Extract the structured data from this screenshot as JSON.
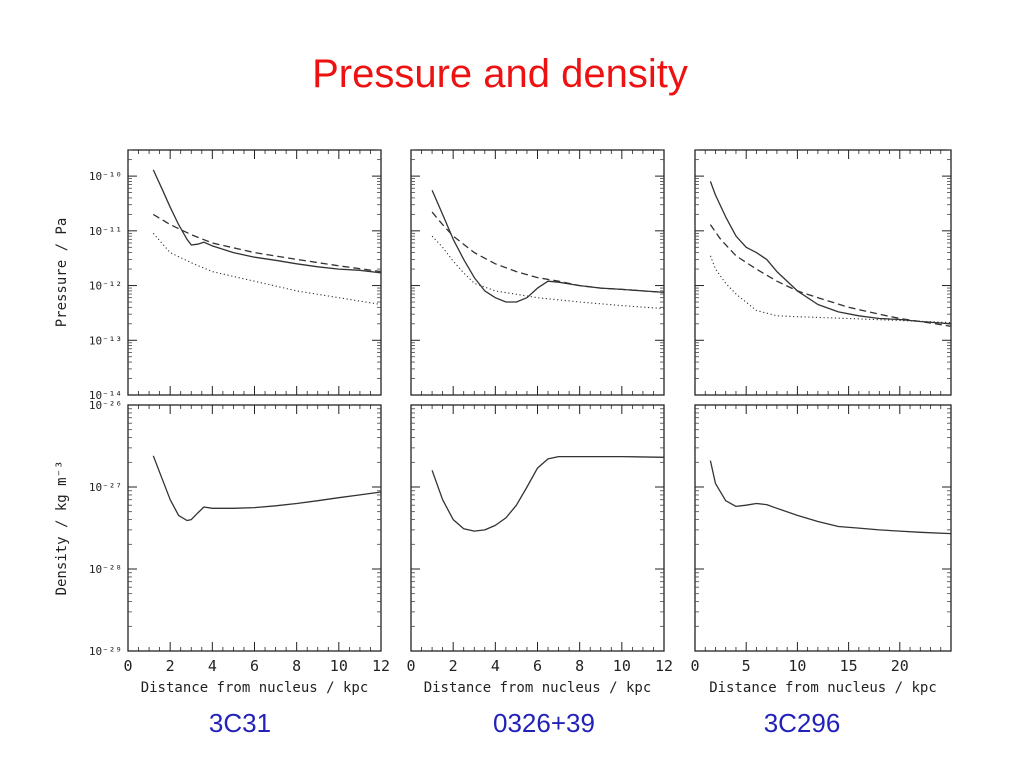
{
  "title": "Pressure and density",
  "captions": [
    "3C31",
    "0326+39",
    "3C296"
  ],
  "colors": {
    "title": "#ee1111",
    "caption": "#2222bb",
    "curve": "#333333"
  },
  "chart_data": [
    {
      "type": "line",
      "panel": "3C31 pressure",
      "xlim": [
        0,
        12
      ],
      "ylim": [
        1e-14,
        3e-10
      ],
      "yscale": "log",
      "ylabel": "Pressure / Pa",
      "ytick_labels": [
        "10⁻¹⁰",
        "10⁻¹¹",
        "10⁻¹²",
        "10⁻¹³",
        "10⁻¹⁴"
      ],
      "series": [
        {
          "style": "solid",
          "x": [
            1.2,
            1.6,
            2.0,
            2.4,
            2.8,
            3.0,
            3.3,
            3.6,
            4.0,
            5.0,
            6.0,
            7.0,
            8.0,
            9.0,
            10.0,
            11.0,
            12.0
          ],
          "y": [
            1.3e-10,
            6e-11,
            2.7e-11,
            1.3e-11,
            7e-12,
            5.5e-12,
            5.7e-12,
            6.2e-12,
            5.3e-12,
            4e-12,
            3.3e-12,
            2.9e-12,
            2.5e-12,
            2.2e-12,
            2e-12,
            1.9e-12,
            1.7e-12
          ]
        },
        {
          "style": "dashed",
          "x": [
            1.2,
            2.0,
            3.0,
            4.0,
            6.0,
            8.0,
            10.0,
            12.0
          ],
          "y": [
            2e-11,
            1.3e-11,
            8.5e-12,
            6e-12,
            4e-12,
            3e-12,
            2.3e-12,
            1.8e-12
          ]
        },
        {
          "style": "dotted",
          "x": [
            1.2,
            1.6,
            2.0,
            3.0,
            4.0,
            6.0,
            8.0,
            10.0,
            12.0
          ],
          "y": [
            9e-12,
            6e-12,
            4e-12,
            2.6e-12,
            1.8e-12,
            1.2e-12,
            8e-13,
            6e-13,
            4.5e-13
          ]
        }
      ]
    },
    {
      "type": "line",
      "panel": "0326+39 pressure",
      "xlim": [
        0,
        12
      ],
      "ylim": [
        1e-14,
        3e-10
      ],
      "yscale": "log",
      "series": [
        {
          "style": "solid",
          "x": [
            1.0,
            1.5,
            2.0,
            2.5,
            3.0,
            3.5,
            4.0,
            4.5,
            5.0,
            5.5,
            6.0,
            6.5,
            7.0,
            8.0,
            9.0,
            10.0,
            11.0,
            12.0
          ],
          "y": [
            5.5e-11,
            2e-11,
            7e-12,
            3e-12,
            1.4e-12,
            8e-13,
            6e-13,
            5e-13,
            5e-13,
            6e-13,
            9e-13,
            1.2e-12,
            1.15e-12,
            1e-12,
            9e-13,
            8.5e-13,
            8e-13,
            7.5e-13
          ]
        },
        {
          "style": "dashed",
          "x": [
            1.0,
            1.5,
            2.0,
            3.0,
            4.0,
            5.0,
            6.0,
            7.0,
            8.0,
            9.0,
            10.0,
            12.0
          ],
          "y": [
            2.2e-11,
            1.3e-11,
            8e-12,
            4e-12,
            2.5e-12,
            1.8e-12,
            1.4e-12,
            1.2e-12,
            1e-12,
            9e-13,
            8.5e-13,
            7.5e-13
          ]
        },
        {
          "style": "dotted",
          "x": [
            1.0,
            1.5,
            2.0,
            2.5,
            3.0,
            4.0,
            6.0,
            8.0,
            10.0,
            12.0
          ],
          "y": [
            8e-12,
            5e-12,
            2.8e-12,
            1.7e-12,
            1.1e-12,
            8e-13,
            6e-13,
            5e-13,
            4.3e-13,
            3.8e-13
          ]
        }
      ]
    },
    {
      "type": "line",
      "panel": "3C296 pressure",
      "xlim": [
        0,
        25
      ],
      "ylim": [
        1e-14,
        3e-10
      ],
      "yscale": "log",
      "series": [
        {
          "style": "solid",
          "x": [
            1.5,
            2.0,
            3.0,
            4.0,
            5.0,
            6.0,
            7.0,
            8.0,
            10.0,
            12.0,
            14.0,
            16.0,
            18.0,
            20.0,
            22.0,
            25.0
          ],
          "y": [
            8e-11,
            4.5e-11,
            1.8e-11,
            8e-12,
            5e-12,
            4e-12,
            3e-12,
            1.8e-12,
            8e-13,
            4.5e-13,
            3.3e-13,
            2.8e-13,
            2.5e-13,
            2.4e-13,
            2.2e-13,
            2e-13
          ]
        },
        {
          "style": "dashed",
          "x": [
            1.5,
            2.5,
            4.0,
            6.0,
            8.0,
            10.0,
            12.0,
            15.0,
            18.0,
            20.0,
            22.0,
            25.0
          ],
          "y": [
            1.3e-11,
            7e-12,
            3.5e-12,
            2e-12,
            1.2e-12,
            8e-13,
            6e-13,
            4e-13,
            3e-13,
            2.5e-13,
            2.2e-13,
            1.8e-13
          ]
        },
        {
          "style": "dotted",
          "x": [
            1.5,
            2.0,
            3.0,
            4.0,
            6.0,
            8.0,
            10.0,
            15.0,
            20.0,
            25.0
          ],
          "y": [
            3.5e-12,
            2e-12,
            1.1e-12,
            7e-13,
            3.5e-13,
            2.8e-13,
            2.7e-13,
            2.5e-13,
            2.3e-13,
            2.1e-13
          ]
        }
      ]
    },
    {
      "type": "line",
      "panel": "3C31 density",
      "xlim": [
        0,
        12
      ],
      "ylim": [
        1e-29,
        1e-26
      ],
      "yscale": "log",
      "ylabel": "Density / kg m⁻³",
      "xlabel": "Distance from nucleus / kpc",
      "ytick_labels": [
        "10⁻²⁶",
        "10⁻²⁷",
        "10⁻²⁸",
        "10⁻²⁹"
      ],
      "xtick_labels": [
        "0",
        "2",
        "4",
        "6",
        "8",
        "10",
        "12"
      ],
      "series": [
        {
          "style": "solid",
          "x": [
            1.2,
            1.6,
            2.0,
            2.4,
            2.8,
            3.0,
            3.3,
            3.6,
            4.0,
            5.0,
            6.0,
            7.0,
            8.0,
            9.0,
            10.0,
            11.0,
            12.0
          ],
          "y": [
            2.4e-27,
            1.3e-27,
            7e-28,
            4.5e-28,
            3.9e-28,
            4e-28,
            4.8e-28,
            5.7e-28,
            5.5e-28,
            5.5e-28,
            5.6e-28,
            5.9e-28,
            6.3e-28,
            6.8e-28,
            7.4e-28,
            8e-28,
            8.7e-28
          ]
        }
      ]
    },
    {
      "type": "line",
      "panel": "0326+39 density",
      "xlim": [
        0,
        12
      ],
      "ylim": [
        1e-29,
        1e-26
      ],
      "yscale": "log",
      "xlabel": "Distance from nucleus / kpc",
      "xtick_labels": [
        "0",
        "2",
        "4",
        "6",
        "8",
        "10",
        "12"
      ],
      "series": [
        {
          "style": "solid",
          "x": [
            1.0,
            1.5,
            2.0,
            2.5,
            3.0,
            3.5,
            4.0,
            4.5,
            5.0,
            5.5,
            6.0,
            6.5,
            7.0,
            8.0,
            9.0,
            10.0,
            12.0
          ],
          "y": [
            1.6e-27,
            7e-28,
            4e-28,
            3.1e-28,
            2.9e-28,
            3e-28,
            3.4e-28,
            4.2e-28,
            6e-28,
            1e-27,
            1.7e-27,
            2.2e-27,
            2.35e-27,
            2.35e-27,
            2.35e-27,
            2.35e-27,
            2.3e-27
          ]
        }
      ]
    },
    {
      "type": "line",
      "panel": "3C296 density",
      "xlim": [
        0,
        25
      ],
      "ylim": [
        1e-29,
        1e-26
      ],
      "yscale": "log",
      "xlabel": "Distance from nucleus / kpc",
      "xtick_labels": [
        "0",
        "5",
        "10",
        "15",
        "20"
      ],
      "series": [
        {
          "style": "solid",
          "x": [
            1.5,
            2.0,
            3.0,
            4.0,
            5.0,
            6.0,
            7.0,
            8.0,
            10.0,
            12.0,
            14.0,
            16.0,
            18.0,
            20.0,
            22.0,
            25.0
          ],
          "y": [
            2.1e-27,
            1.1e-27,
            6.8e-28,
            5.8e-28,
            6e-28,
            6.3e-28,
            6.1e-28,
            5.5e-28,
            4.5e-28,
            3.8e-28,
            3.3e-28,
            3.15e-28,
            3e-28,
            2.9e-28,
            2.8e-28,
            2.7e-28
          ]
        }
      ]
    }
  ]
}
